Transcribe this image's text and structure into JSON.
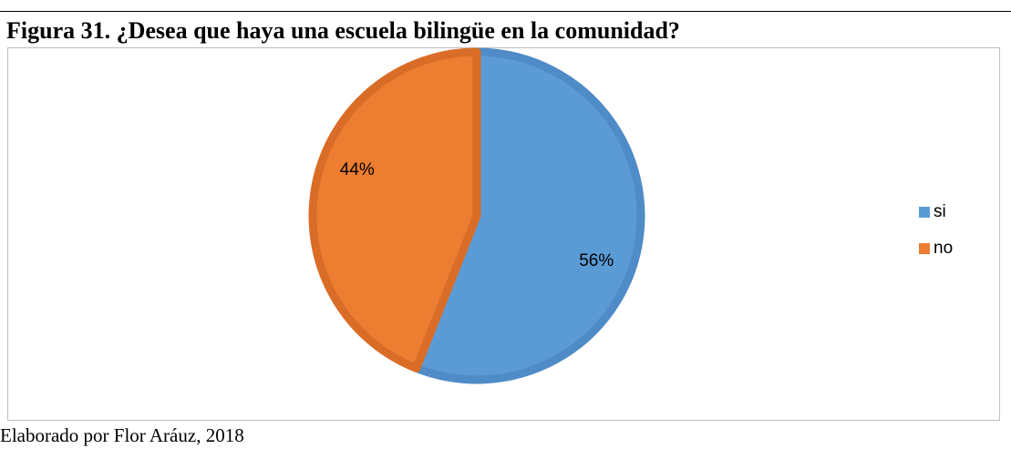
{
  "figure": {
    "title": "Figura 31. ¿Desea que haya una escuela bilingüe en la comunidad?",
    "caption": "Elaborado por Flor Aráuz, 2018"
  },
  "chart_data": {
    "type": "pie",
    "categories": [
      "si",
      "no"
    ],
    "values": [
      56,
      44
    ],
    "data_labels": [
      "56%",
      "44%"
    ],
    "colors": [
      "#5b9bd5",
      "#ed7d31"
    ],
    "border_colors": [
      "#4f8bc6",
      "#d96d27"
    ],
    "legend_position": "right"
  }
}
